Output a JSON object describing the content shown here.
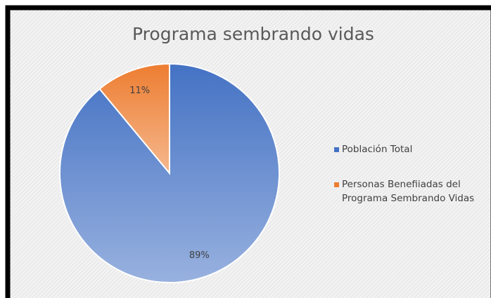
{
  "chart_data": {
    "type": "pie",
    "title": "Programa sembrando vidas",
    "categories": [
      "Población Total",
      "Personas Benefiiadas del Programa Sembrando Vidas"
    ],
    "values": [
      89,
      11
    ],
    "value_labels": [
      "89%",
      "11%"
    ],
    "colors": [
      "#4472c4",
      "#ed7d31"
    ],
    "legend": "right"
  }
}
